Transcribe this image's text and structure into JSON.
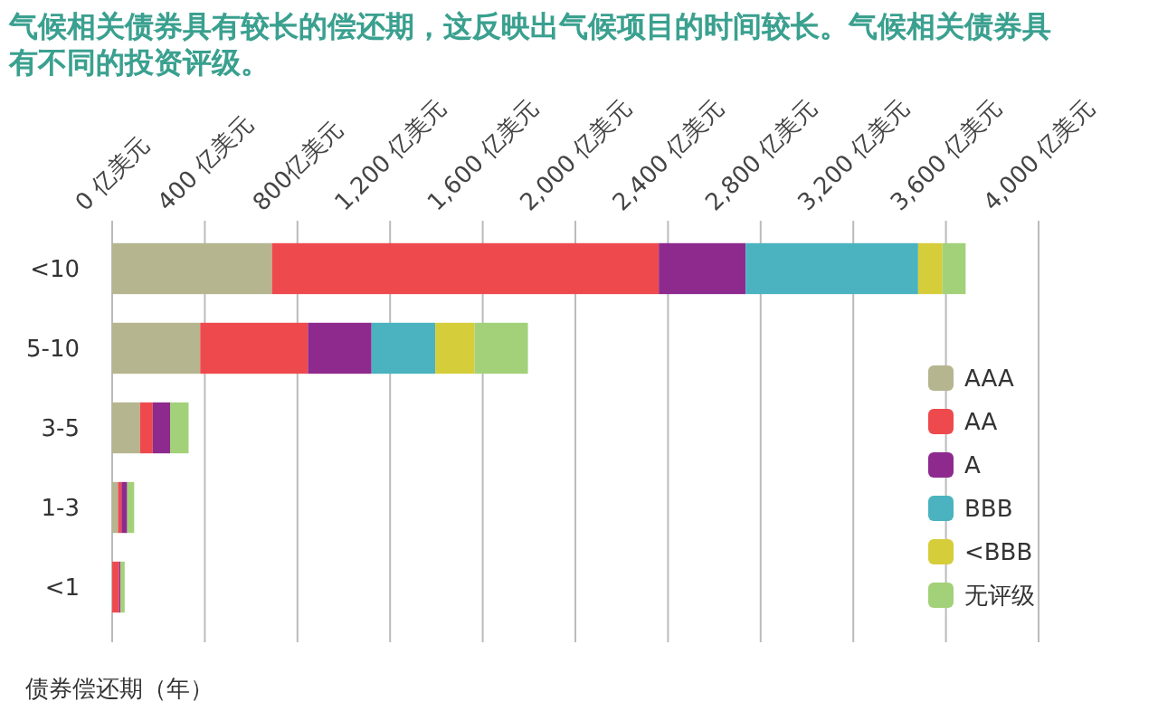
{
  "chart_data": {
    "type": "bar",
    "orientation": "horizontal",
    "stacked": true,
    "title": "气候相关债券具有较长的偿还期，这反映出气候项目的时间较长。气候相关债券具有不同的投资评级。",
    "ylabel": "债券偿还期（年）",
    "categories": [
      "<10",
      "5-10",
      "3-5",
      "1-3",
      "<1"
    ],
    "series": [
      {
        "name": "AAA",
        "color": "#b5b58f",
        "values": [
          690,
          380,
          120,
          25,
          0
        ]
      },
      {
        "name": "AA",
        "color": "#ee4a4e",
        "values": [
          1670,
          465,
          55,
          15,
          30
        ]
      },
      {
        "name": "A",
        "color": "#8e2a8e",
        "values": [
          375,
          275,
          75,
          25,
          6
        ]
      },
      {
        "name": "BBB",
        "color": "#4bb3bf",
        "values": [
          745,
          275,
          0,
          0,
          0
        ]
      },
      {
        "name": "<BBB",
        "color": "#d6cd3a",
        "values": [
          105,
          170,
          0,
          0,
          0
        ]
      },
      {
        "name": "无评级",
        "color": "#a3d17a",
        "values": [
          100,
          230,
          80,
          30,
          18
        ]
      }
    ],
    "xlim": [
      0,
      4000
    ],
    "xticks": [
      {
        "value": 0,
        "label": "0 亿美元"
      },
      {
        "value": 400,
        "label": "400 亿美元"
      },
      {
        "value": 800,
        "label": "800亿美元"
      },
      {
        "value": 1200,
        "label": "1,200 亿美元"
      },
      {
        "value": 1600,
        "label": "1,600 亿美元"
      },
      {
        "value": 2000,
        "label": "2,000 亿美元"
      },
      {
        "value": 2400,
        "label": "2,400 亿美元"
      },
      {
        "value": 2800,
        "label": "2,800 亿美元"
      },
      {
        "value": 3200,
        "label": "3,200 亿美元"
      },
      {
        "value": 3600,
        "label": "3,600 亿美元"
      },
      {
        "value": 4000,
        "label": "4,000 亿美元"
      }
    ],
    "grid": "x",
    "legend": "bottom right"
  }
}
